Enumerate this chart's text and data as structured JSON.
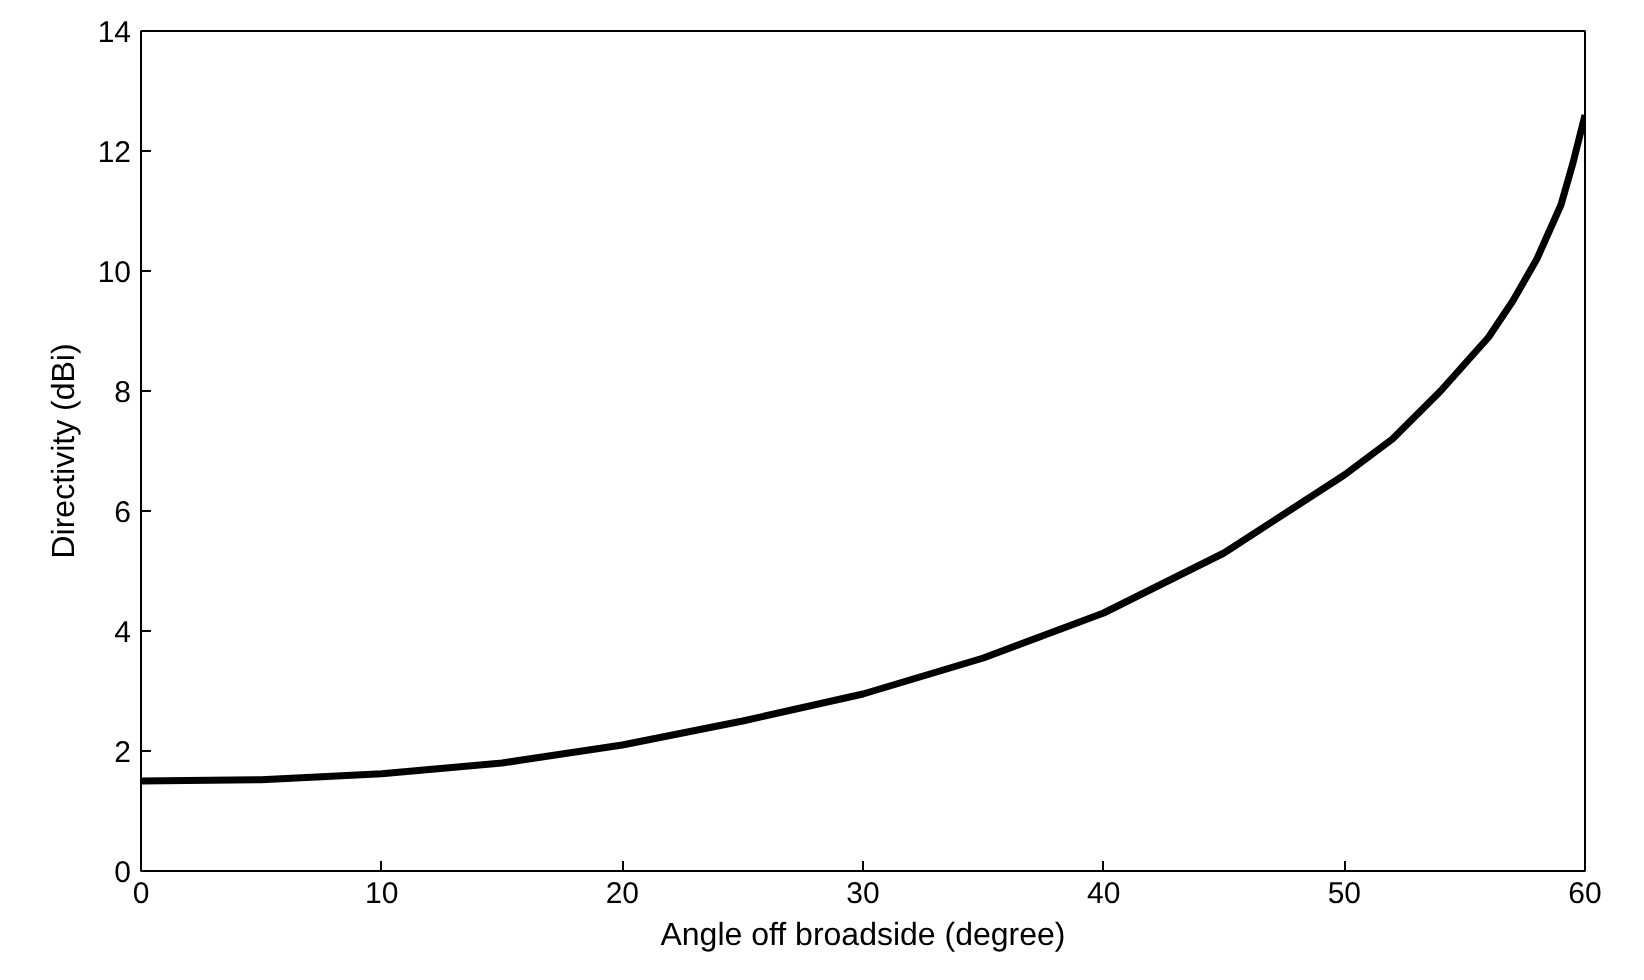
{
  "chart_data": {
    "type": "line",
    "xlabel": "Angle off broadside (degree)",
    "ylabel": "Directivity (dBi)",
    "x": [
      0,
      5,
      10,
      15,
      20,
      25,
      30,
      35,
      40,
      45,
      50,
      52,
      54,
      56,
      57,
      58,
      59,
      59.5,
      60
    ],
    "series": [
      {
        "color": "#000000",
        "values": [
          1.5,
          1.52,
          1.62,
          1.8,
          2.1,
          2.5,
          2.95,
          3.55,
          4.3,
          5.3,
          6.6,
          7.2,
          8.0,
          8.9,
          9.5,
          10.2,
          11.1,
          11.8,
          12.6
        ]
      }
    ],
    "xlim": [
      0,
      60
    ],
    "ylim": [
      0,
      14
    ],
    "xticks": [
      0,
      10,
      20,
      30,
      40,
      50,
      60
    ],
    "yticks": [
      0,
      2,
      4,
      6,
      8,
      10,
      12,
      14
    ],
    "grid": false,
    "marker": "none",
    "line_style": "solid"
  }
}
